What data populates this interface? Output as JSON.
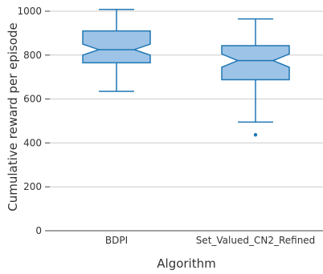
{
  "chart_data": {
    "type": "box",
    "title": "",
    "xlabel": "Algorithm",
    "ylabel": "Cumulative reward per episode",
    "ylim": [
      0,
      1000
    ],
    "yticks": [
      0,
      200,
      400,
      600,
      800,
      1000
    ],
    "grid": true,
    "categories": [
      "BDPI",
      "Set_Valued_CN2_Refined"
    ],
    "boxes": [
      {
        "category": "BDPI",
        "whisker_low": 635,
        "q1": 765,
        "median": 825,
        "q3": 910,
        "whisker_high": 1008,
        "notch_low": 800,
        "notch_high": 850,
        "outliers": []
      },
      {
        "category": "Set_Valued_CN2_Refined",
        "whisker_low": 495,
        "q1": 688,
        "median": 775,
        "q3": 843,
        "whisker_high": 965,
        "notch_low": 745,
        "notch_high": 805,
        "outliers": [
          437
        ]
      }
    ],
    "colors": {
      "box_fill": "#9dc3e6",
      "box_stroke": "#1f77b4",
      "grid": "#cccccc",
      "axis": "#444444"
    }
  }
}
